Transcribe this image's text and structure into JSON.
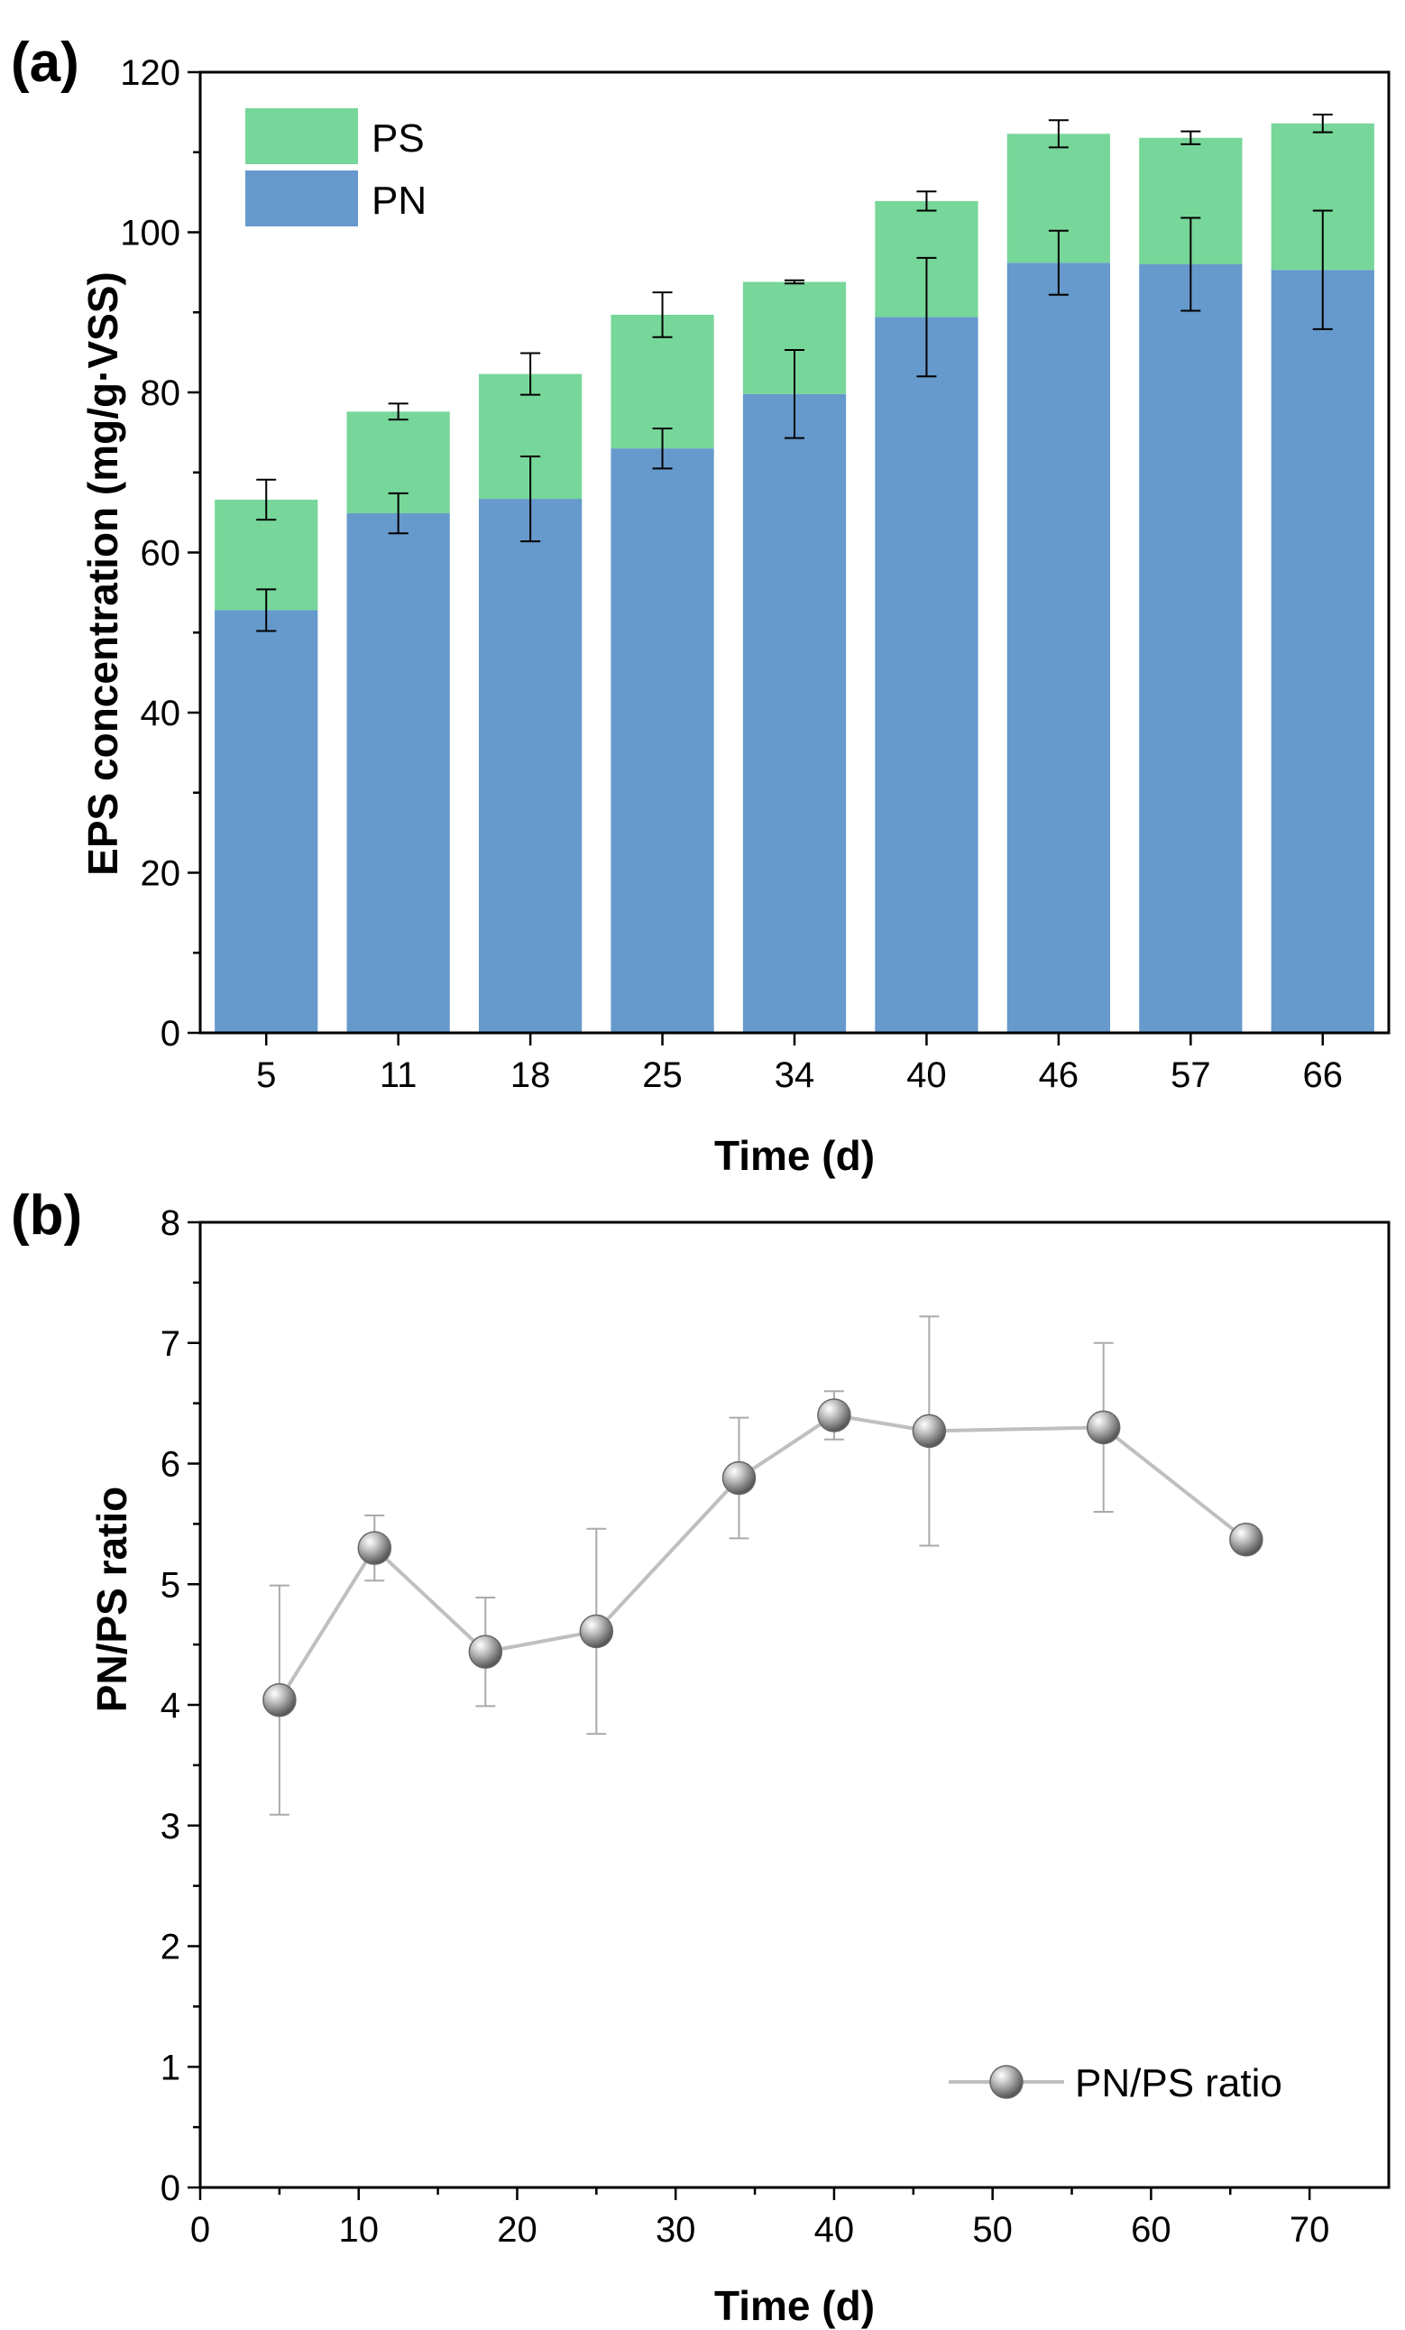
{
  "colors": {
    "pn": "#6699CC",
    "ps": "#77D699",
    "ratio_line": "#BFBFBF",
    "axis": "#000000"
  },
  "chart_data": [
    {
      "panel_label": "(a)",
      "type": "bar",
      "stacked": true,
      "categories": [
        "5",
        "11",
        "18",
        "25",
        "34",
        "40",
        "46",
        "57",
        "66"
      ],
      "series": [
        {
          "name": "PN",
          "values": [
            52.8,
            64.9,
            66.7,
            73.0,
            79.8,
            89.4,
            96.2,
            96.0,
            95.3
          ],
          "error": [
            2.6,
            2.5,
            5.3,
            2.5,
            5.5,
            7.4,
            4.0,
            5.8,
            7.4
          ]
        },
        {
          "name": "PS",
          "values": [
            13.8,
            12.7,
            15.6,
            16.7,
            14.0,
            14.5,
            16.1,
            15.8,
            18.3
          ],
          "error": [
            2.5,
            1.0,
            2.6,
            2.8,
            0.2,
            1.2,
            1.7,
            0.8,
            1.1
          ]
        }
      ],
      "xlabel": "Time (d)",
      "ylabel": "EPS concentration (mg/g·VSS)",
      "ylim": [
        0,
        120
      ],
      "yticks": [
        "0",
        "20",
        "40",
        "60",
        "80",
        "100",
        "120"
      ],
      "legend": {
        "position": "top-left",
        "items": [
          "PS",
          "PN"
        ]
      },
      "grid": false
    },
    {
      "panel_label": "(b)",
      "type": "line",
      "series": [
        {
          "name": "PN/PS ratio",
          "x": [
            5,
            11,
            18,
            25,
            34,
            40,
            46,
            57,
            66
          ],
          "y": [
            4.04,
            5.3,
            4.44,
            4.61,
            5.88,
            6.4,
            6.27,
            6.3,
            5.37
          ],
          "error": [
            0.95,
            0.27,
            0.45,
            0.85,
            0.5,
            0.2,
            0.95,
            0.7,
            0.07
          ]
        }
      ],
      "xlabel": "Time (d)",
      "ylabel": "PN/PS ratio",
      "xlim": [
        0,
        75
      ],
      "ylim": [
        0,
        8
      ],
      "xticks": [
        "0",
        "10",
        "20",
        "30",
        "40",
        "50",
        "60",
        "70"
      ],
      "yticks": [
        "0",
        "1",
        "2",
        "3",
        "4",
        "5",
        "6",
        "7",
        "8"
      ],
      "legend": {
        "position": "bottom-right",
        "items": [
          "PN/PS ratio"
        ]
      },
      "grid": false
    }
  ]
}
